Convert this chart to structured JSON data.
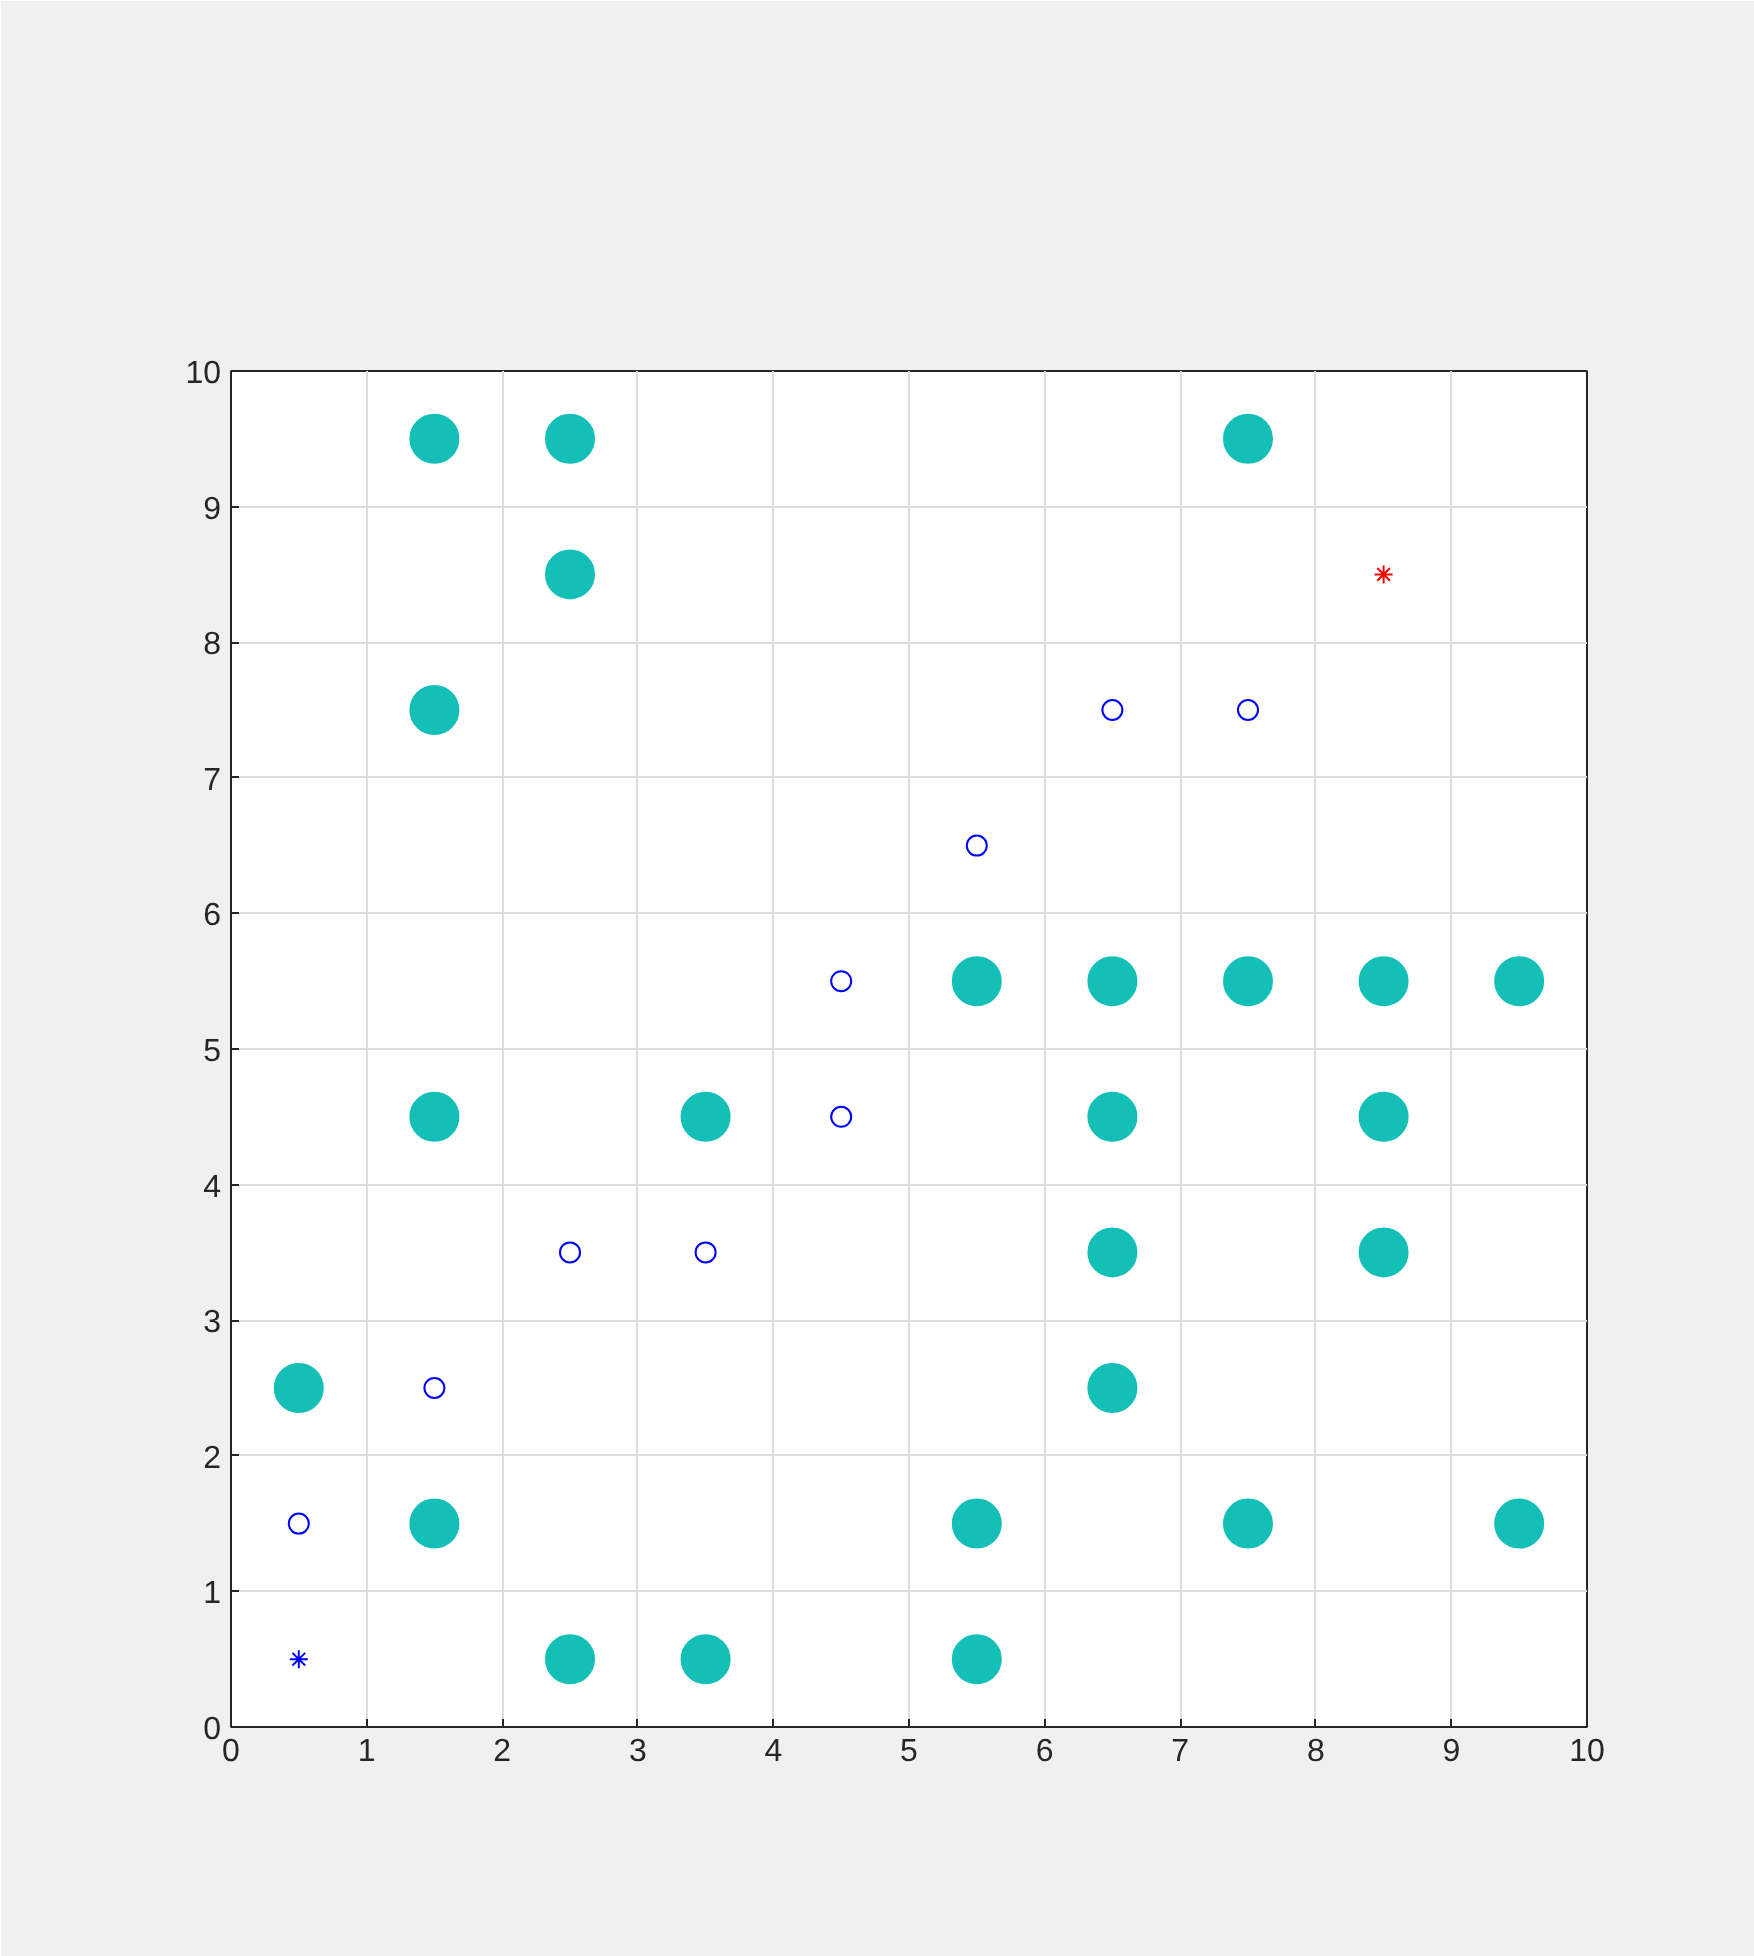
{
  "chart_data": {
    "type": "scatter",
    "xlim": [
      0,
      10
    ],
    "ylim": [
      0,
      10
    ],
    "xticks": [
      0,
      1,
      2,
      3,
      4,
      5,
      6,
      7,
      8,
      9,
      10
    ],
    "yticks": [
      0,
      1,
      2,
      3,
      4,
      5,
      6,
      7,
      8,
      9,
      10
    ],
    "grid": true,
    "series": [
      {
        "type": "bubble",
        "marker": "circle",
        "color": "#14bfb8",
        "x": [
          1.5,
          2.5,
          7.5,
          2.5,
          1.5,
          5.5,
          6.5,
          7.5,
          8.5,
          9.5,
          1.5,
          3.5,
          6.5,
          8.5,
          6.5,
          8.5,
          0.5,
          6.5,
          1.5,
          5.5,
          7.5,
          9.5,
          2.5,
          3.5,
          5.5
        ],
        "values": [
          9.5,
          9.5,
          9.5,
          8.5,
          7.5,
          5.5,
          5.5,
          5.5,
          5.5,
          5.5,
          4.5,
          4.5,
          4.5,
          4.5,
          3.5,
          3.5,
          2.5,
          2.5,
          1.5,
          1.5,
          1.5,
          1.5,
          0.5,
          0.5,
          0.5
        ],
        "sizes": [
          1,
          1,
          1,
          1,
          1,
          1,
          1,
          1,
          1,
          1,
          1,
          1,
          1,
          1,
          1,
          1,
          1,
          1,
          1,
          1,
          1,
          1,
          1,
          1,
          1
        ]
      },
      {
        "marker": "circle",
        "color": "#0000ff",
        "x": [
          0.5,
          1.5,
          2.5,
          3.5,
          4.5,
          4.5,
          5.5,
          6.5,
          7.5
        ],
        "values": [
          1.5,
          2.5,
          3.5,
          3.5,
          4.5,
          5.5,
          6.5,
          7.5,
          7.5
        ]
      },
      {
        "marker": "cross",
        "color": "#0000ff",
        "x": [
          0.5
        ],
        "values": [
          0.5
        ]
      },
      {
        "marker": "cross",
        "color": "#ff0000",
        "x": [
          8.5
        ],
        "values": [
          8.5
        ]
      }
    ]
  }
}
